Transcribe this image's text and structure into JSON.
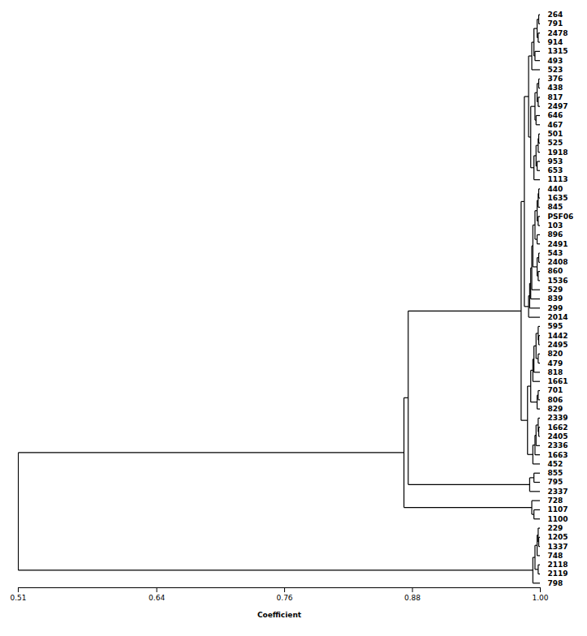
{
  "chart_data": {
    "type": "dendrogram",
    "xlabel": "Coefficient",
    "xlim": [
      0.51,
      1.0
    ],
    "xticks": [
      0.51,
      0.64,
      0.76,
      0.88,
      {
        "value": 1.0,
        "label": "1.00"
      }
    ],
    "grid": false,
    "color": "#000000",
    "categories": [
      "264",
      "791",
      "2478",
      "914",
      "1315",
      "493",
      "523",
      "376",
      "438",
      "817",
      "2497",
      "646",
      "467",
      "501",
      "525",
      "1918",
      "953",
      "653",
      "1113",
      "440",
      "1635",
      "845",
      "PSF06",
      "103",
      "896",
      "2491",
      "543",
      "2408",
      "860",
      "1536",
      "529",
      "839",
      "299",
      "2014",
      "595",
      "1442",
      "2495",
      "820",
      "479",
      "818",
      "1661",
      "701",
      "806",
      "829",
      "2339",
      "1662",
      "2405",
      "2336",
      "1663",
      "452",
      "855",
      "795",
      "2337",
      "728",
      "1107",
      "1100",
      "229",
      "1205",
      "1337",
      "748",
      "2118",
      "2119",
      "798"
    ],
    "tree": {
      "value": 0.51,
      "children": [
        {
          "value": 0.872,
          "children": [
            {
              "value": 0.876,
              "children": [
                {
                  "value": 0.982,
                  "children": [
                    {
                      "value": 0.985,
                      "children": [
                        {
                          "value": 0.989,
                          "children": [
                            {
                              "value": 0.992,
                              "children": [
                                {
                                  "value": 0.994,
                                  "children": [
                                    {
                                      "value": 0.997,
                                      "children": [
                                        {
                                          "value": 0.9985,
                                          "children": [
                                            "264",
                                            "791"
                                          ]
                                        },
                                        {
                                          "value": 0.998,
                                          "children": [
                                            "2478",
                                            "914"
                                          ]
                                        }
                                      ]
                                    },
                                    {
                                      "value": 0.995,
                                      "children": [
                                        "1315",
                                        "493"
                                      ]
                                    }
                                  ]
                                },
                                "523"
                              ]
                            },
                            {
                              "value": 0.991,
                              "children": [
                                {
                                  "value": 0.995,
                                  "children": [
                                    {
                                      "value": 0.997,
                                      "children": [
                                        {
                                          "value": 0.9985,
                                          "children": [
                                            "376",
                                            "438"
                                          ]
                                        },
                                        {
                                          "value": 0.998,
                                          "children": [
                                            "817",
                                            "2497"
                                          ]
                                        }
                                      ]
                                    },
                                    {
                                      "value": 0.996,
                                      "children": [
                                        "646",
                                        "467"
                                      ]
                                    }
                                  ]
                                },
                                {
                                  "value": 0.994,
                                  "children": [
                                    {
                                      "value": 0.996,
                                      "children": [
                                        {
                                          "value": 0.998,
                                          "children": [
                                            {
                                              "value": 0.9985,
                                              "children": [
                                                "501",
                                                "525"
                                              ]
                                            },
                                            "1918"
                                          ]
                                        },
                                        {
                                          "value": 0.997,
                                          "children": [
                                            "953",
                                            "653"
                                          ]
                                        }
                                      ]
                                    },
                                    "1113"
                                  ]
                                }
                              ]
                            }
                          ]
                        },
                        {
                          "value": 0.989,
                          "children": [
                            {
                              "value": 0.99,
                              "children": [
                                {
                                  "value": 0.991,
                                  "children": [
                                    {
                                      "value": 0.992,
                                      "children": [
                                        {
                                          "value": 0.993,
                                          "children": [
                                            {
                                              "value": 0.995,
                                              "children": [
                                                {
                                                  "value": 0.997,
                                                  "children": [
                                                    {
                                                      "value": 0.998,
                                                      "children": [
                                                        {
                                                          "value": 0.9985,
                                                          "children": [
                                                            "440",
                                                            "1635"
                                                          ]
                                                        },
                                                        "845"
                                                      ]
                                                    },
                                                    {
                                                      "value": 0.998,
                                                      "children": [
                                                        "PSF06",
                                                        "103"
                                                      ]
                                                    }
                                                  ]
                                                },
                                                {
                                                  "value": 0.997,
                                                  "children": [
                                                    "896",
                                                    "2491"
                                                  ]
                                                }
                                              ]
                                            },
                                            {
                                              "value": 0.997,
                                              "children": [
                                                {
                                                  "value": 0.9985,
                                                  "children": [
                                                    "543",
                                                    "2408"
                                                  ]
                                                },
                                                {
                                                  "value": 0.998,
                                                  "children": [
                                                    "860",
                                                    "1536"
                                                  ]
                                                }
                                              ]
                                            }
                                          ]
                                        },
                                        "529"
                                      ]
                                    },
                                    "839"
                                  ]
                                },
                                "299"
                              ]
                            },
                            "2014"
                          ]
                        }
                      ]
                    },
                    {
                      "value": 0.988,
                      "children": [
                        {
                          "value": 0.991,
                          "children": [
                            {
                              "value": 0.993,
                              "children": [
                                {
                                  "value": 0.994,
                                  "children": [
                                    {
                                      "value": 0.996,
                                      "children": [
                                        {
                                          "value": 0.998,
                                          "children": [
                                            "595",
                                            {
                                              "value": 0.9985,
                                              "children": [
                                                "1442",
                                                "2495"
                                              ]
                                            }
                                          ]
                                        },
                                        {
                                          "value": 0.998,
                                          "children": [
                                            "820",
                                            "479"
                                          ]
                                        }
                                      ]
                                    },
                                    "818"
                                  ]
                                },
                                "1661"
                              ]
                            },
                            {
                              "value": 0.997,
                              "children": [
                                {
                                  "value": 0.998,
                                  "children": [
                                    "701",
                                    "806"
                                  ]
                                },
                                "829"
                              ]
                            }
                          ]
                        },
                        {
                          "value": 0.993,
                          "children": [
                            {
                              "value": 0.995,
                              "children": [
                                {
                                  "value": 0.996,
                                  "children": [
                                    {
                                      "value": 0.998,
                                      "children": [
                                        "2339",
                                        {
                                          "value": 0.9985,
                                          "children": [
                                            "1662",
                                            "2405"
                                          ]
                                        }
                                      ]
                                    },
                                    "2336"
                                  ]
                                },
                                "1663"
                              ]
                            },
                            "452"
                          ]
                        }
                      ]
                    }
                  ]
                },
                {
                  "value": 0.99,
                  "children": [
                    {
                      "value": 0.994,
                      "children": [
                        "855",
                        "795"
                      ]
                    },
                    "2337"
                  ]
                }
              ]
            },
            {
              "value": 0.992,
              "children": [
                "728",
                {
                  "value": 0.994,
                  "children": [
                    "1107",
                    "1100"
                  ]
                }
              ]
            }
          ]
        },
        {
          "value": 0.993,
          "children": [
            {
              "value": 0.995,
              "children": [
                {
                  "value": 0.997,
                  "children": [
                    {
                      "value": 0.998,
                      "children": [
                        "229",
                        {
                          "value": 0.9985,
                          "children": [
                            "1205",
                            "1337"
                          ]
                        }
                      ]
                    },
                    "748"
                  ]
                },
                {
                  "value": 0.998,
                  "children": [
                    "2118",
                    "2119"
                  ]
                }
              ]
            },
            "798"
          ]
        }
      ]
    }
  }
}
